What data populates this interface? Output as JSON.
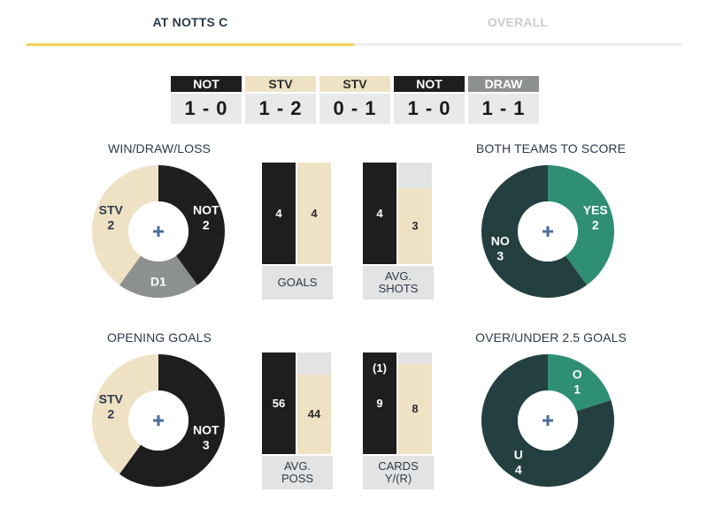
{
  "tabs": {
    "active": "AT NOTTS C",
    "inactive": "OVERALL"
  },
  "colors": {
    "not": "#1e1e1e",
    "stv": "#efe2c4",
    "draw": "#8d918d",
    "yes": "#2f8f74",
    "no": "#243f3f",
    "bar_empty": "#e3e3e3",
    "accent": "#f2d35b"
  },
  "recent_results": [
    {
      "team": "NOT",
      "score": "1 - 0",
      "type": "not"
    },
    {
      "team": "STV",
      "score": "1 - 2",
      "type": "stv"
    },
    {
      "team": "STV",
      "score": "0 - 1",
      "type": "stv"
    },
    {
      "team": "NOT",
      "score": "1 - 0",
      "type": "not"
    },
    {
      "team": "DRAW",
      "score": "1 - 1",
      "type": "draw"
    }
  ],
  "sections": {
    "wdl": "WIN/DRAW/LOSS",
    "btts": "BOTH TEAMS TO SCORE",
    "opening": "OPENING GOALS",
    "ou": "OVER/UNDER 2.5 GOALS"
  },
  "center_icon": "plus-icon",
  "wdl_donut": {
    "slices": [
      {
        "label": "NOT",
        "value": 2,
        "display": "2",
        "color": "#1e1e1e",
        "text": "#ffffff"
      },
      {
        "label": "D",
        "value": 1,
        "display": "1",
        "color": "#8d918d",
        "text": "#ffffff",
        "inline": true
      },
      {
        "label": "STV",
        "value": 2,
        "display": "2",
        "color": "#efe2c4",
        "text": "#2b3a4a"
      }
    ]
  },
  "btts_donut": {
    "slices": [
      {
        "label": "YES",
        "value": 2,
        "display": "2",
        "color": "#2f8f74",
        "text": "#ffffff"
      },
      {
        "label": "NO",
        "value": 3,
        "display": "3",
        "color": "#243f3f",
        "text": "#ffffff"
      }
    ]
  },
  "opening_donut": {
    "slices": [
      {
        "label": "NOT",
        "value": 3,
        "display": "3",
        "color": "#1e1e1e",
        "text": "#ffffff"
      },
      {
        "label": "STV",
        "value": 2,
        "display": "2",
        "color": "#efe2c4",
        "text": "#2b3a4a"
      }
    ]
  },
  "ou_donut": {
    "slices": [
      {
        "label": "O",
        "value": 1,
        "display": "1",
        "color": "#2f8f74",
        "text": "#ffffff"
      },
      {
        "label": "U",
        "value": 4,
        "display": "4",
        "color": "#243f3f",
        "text": "#ffffff"
      }
    ]
  },
  "goals": {
    "not": 4,
    "stv": 4,
    "max": 4,
    "not_label": "4",
    "stv_label": "4",
    "caption_line1": "GOALS",
    "caption_line2": ""
  },
  "shots": {
    "not": 4,
    "stv": 3,
    "max": 4,
    "not_label": "4",
    "stv_label": "3",
    "caption_line1": "AVG.",
    "caption_line2": "SHOTS"
  },
  "poss": {
    "not": 56,
    "stv": 44,
    "max": 56,
    "not_label": "56",
    "stv_label": "44",
    "caption_line1": "AVG.",
    "caption_line2": "POSS"
  },
  "cards": {
    "not": 9,
    "stv": 8,
    "max": 9,
    "not_label": "9",
    "stv_label": "8",
    "not_red_label": "(1)",
    "caption_line1": "CARDS",
    "caption_line2": "Y/(R)"
  }
}
